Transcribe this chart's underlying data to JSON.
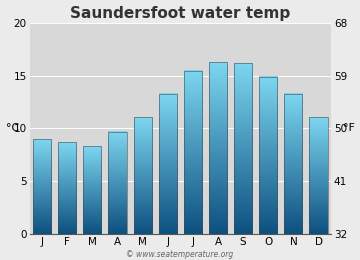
{
  "title": "Saundersfoot water temp",
  "months": [
    "J",
    "F",
    "M",
    "A",
    "M",
    "J",
    "J",
    "A",
    "S",
    "O",
    "N",
    "D"
  ],
  "values_c": [
    9.0,
    8.7,
    8.3,
    9.7,
    11.1,
    13.3,
    15.5,
    16.3,
    16.2,
    14.9,
    13.3,
    11.1
  ],
  "ylabel_left": "°C",
  "ylabel_right": "°F",
  "ylim_c": [
    0,
    20
  ],
  "yticks_c": [
    0,
    5,
    10,
    15,
    20
  ],
  "yticks_f": [
    32,
    41,
    50,
    59,
    68
  ],
  "bar_color_top": "#7dd6f0",
  "bar_color_bottom": "#0d5080",
  "bar_edge_color": "#4a4a4a",
  "background_color": "#ebebeb",
  "plot_bg_color": "#d8d8d8",
  "watermark": "© www.seatemperature.org",
  "title_fontsize": 11,
  "tick_fontsize": 7.5,
  "label_fontsize": 8
}
